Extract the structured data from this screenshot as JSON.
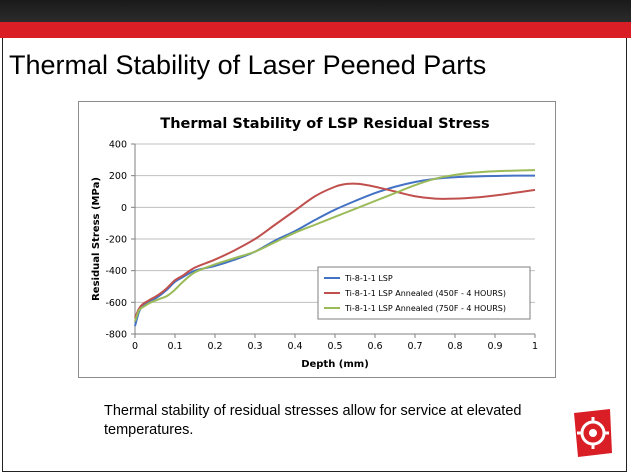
{
  "slide": {
    "title": "Thermal Stability of Laser Peened Parts",
    "caption": "Thermal stability of residual stresses allow for service at elevated temperatures.",
    "colors": {
      "band_dark": "#1a1a1a",
      "band_red": "#d91e26",
      "logo": "#d91e26"
    }
  },
  "chart_data": {
    "type": "line",
    "title": "Thermal Stability of LSP Residual Stress",
    "xlabel": "Depth (mm)",
    "ylabel": "Residual Stress (MPa)",
    "xlim": [
      0,
      1
    ],
    "ylim": [
      -800,
      400
    ],
    "xticks": [
      "0",
      "0.1",
      "0.2",
      "0.3",
      "0.4",
      "0.5",
      "0.6",
      "0.7",
      "0.8",
      "0.9",
      "1"
    ],
    "yticks": [
      "400",
      "200",
      "0",
      "-200",
      "-400",
      "-600",
      "-800"
    ],
    "grid": "horizontal",
    "legend_position": "lower-right",
    "series": [
      {
        "name": "Ti-8-1-1 LSP",
        "color": "#4472c4",
        "x": [
          0,
          0.01,
          0.02,
          0.04,
          0.06,
          0.08,
          0.1,
          0.12,
          0.15,
          0.2,
          0.25,
          0.3,
          0.35,
          0.4,
          0.45,
          0.5,
          0.55,
          0.6,
          0.65,
          0.7,
          0.75,
          0.8,
          0.85,
          0.9,
          0.95,
          1.0
        ],
        "y": [
          -750,
          -660,
          -620,
          -590,
          -560,
          -520,
          -470,
          -440,
          -400,
          -370,
          -330,
          -280,
          -210,
          -150,
          -80,
          -15,
          40,
          90,
          130,
          160,
          180,
          190,
          195,
          198,
          200,
          200
        ]
      },
      {
        "name": "Ti-8-1-1 LSP Annealed (450F -  4 HOURS)",
        "color": "#c0504d",
        "x": [
          0,
          0.01,
          0.02,
          0.04,
          0.06,
          0.08,
          0.1,
          0.12,
          0.15,
          0.2,
          0.25,
          0.3,
          0.35,
          0.4,
          0.45,
          0.5,
          0.53,
          0.56,
          0.6,
          0.65,
          0.7,
          0.75,
          0.8,
          0.85,
          0.9,
          0.95,
          1.0
        ],
        "y": [
          -700,
          -640,
          -610,
          -580,
          -550,
          -510,
          -460,
          -430,
          -380,
          -330,
          -270,
          -200,
          -110,
          -20,
          70,
          130,
          148,
          148,
          130,
          100,
          70,
          55,
          55,
          62,
          75,
          92,
          110
        ]
      },
      {
        "name": "Ti-8-1-1 LSP Annealed (750F -  4 HOURS)",
        "color": "#9bbb59",
        "x": [
          0,
          0.01,
          0.02,
          0.04,
          0.06,
          0.08,
          0.1,
          0.12,
          0.15,
          0.2,
          0.25,
          0.3,
          0.35,
          0.4,
          0.45,
          0.5,
          0.55,
          0.6,
          0.65,
          0.7,
          0.75,
          0.8,
          0.85,
          0.9,
          0.95,
          1.0
        ],
        "y": [
          -720,
          -650,
          -630,
          -600,
          -580,
          -560,
          -520,
          -470,
          -410,
          -360,
          -320,
          -280,
          -220,
          -160,
          -110,
          -60,
          -10,
          40,
          90,
          140,
          180,
          205,
          220,
          228,
          232,
          235
        ]
      }
    ]
  }
}
